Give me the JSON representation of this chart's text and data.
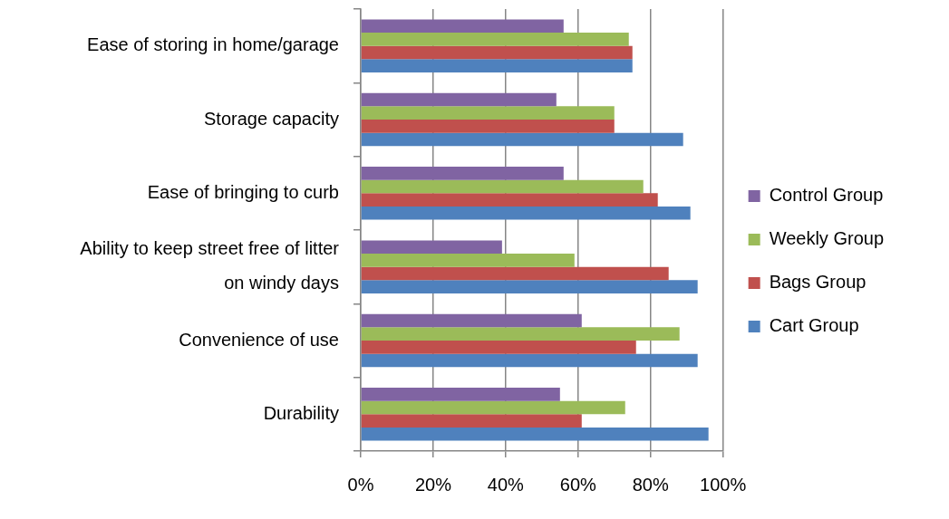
{
  "chart_data": {
    "type": "bar",
    "orientation": "horizontal",
    "categories": [
      "Ease of storing in home/garage",
      "Storage capacity",
      "Ease of bringing to curb",
      "Ability to keep street free of litter on windy days",
      "Convenience of use",
      "Durability"
    ],
    "series": [
      {
        "name": "Control Group",
        "color": "#8064a2",
        "values": [
          56,
          54,
          56,
          39,
          61,
          55
        ]
      },
      {
        "name": "Weekly Group",
        "color": "#9bbb59",
        "values": [
          74,
          70,
          78,
          59,
          88,
          73
        ]
      },
      {
        "name": "Bags Group",
        "color": "#c0504d",
        "values": [
          75,
          70,
          82,
          85,
          76,
          61
        ]
      },
      {
        "name": "Cart Group",
        "color": "#4f81bd",
        "values": [
          75,
          89,
          91,
          93,
          93,
          96
        ]
      }
    ],
    "xlim": [
      0,
      100
    ],
    "xticks": [
      {
        "value": 0,
        "label": "0%"
      },
      {
        "value": 20,
        "label": "20%"
      },
      {
        "value": 40,
        "label": "40%"
      },
      {
        "value": 60,
        "label": "60%"
      },
      {
        "value": 80,
        "label": "80%"
      },
      {
        "value": 100,
        "label": "100%"
      }
    ],
    "grid": "x",
    "legend": "right"
  }
}
